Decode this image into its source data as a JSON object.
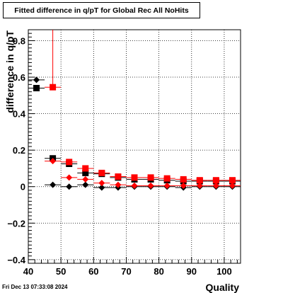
{
  "chart_data": {
    "type": "scatter",
    "title": "Fitted difference in q/pT for Global Rec All NoHits",
    "xlabel": "Quality",
    "ylabel": "difference in q/pT",
    "xlim": [
      40,
      105
    ],
    "ylim": [
      -0.42,
      0.86
    ],
    "grid": true,
    "x_ticks": [
      40,
      50,
      60,
      70,
      80,
      90,
      100
    ],
    "y_ticks": [
      -0.4,
      -0.2,
      0,
      0.2,
      0.4,
      0.6,
      0.8
    ],
    "x_tick_labels": [
      "40",
      "50",
      "60",
      "70",
      "80",
      "90",
      "100"
    ],
    "y_tick_labels": [
      "−0.4",
      "−0.2",
      "0",
      "0.2",
      "0.4",
      "0.6",
      "0.8"
    ],
    "series": [
      {
        "marker": "square",
        "color": "#000000",
        "x": [
          42.5,
          47.5,
          52.5,
          57.5,
          62.5,
          67.5,
          72.5,
          77.5,
          82.5,
          87.5,
          92.5,
          97.5,
          102.5
        ],
        "y": [
          0.54,
          0.155,
          0.125,
          0.075,
          0.07,
          0.05,
          0.04,
          0.04,
          0.035,
          0.03,
          0.03,
          0.03,
          0.03
        ]
      },
      {
        "marker": "square",
        "color": "#ff0000",
        "x": [
          47.5,
          52.5,
          57.5,
          62.5,
          67.5,
          72.5,
          77.5,
          82.5,
          87.5,
          92.5,
          97.5,
          102.5
        ],
        "y": [
          0.545,
          0.135,
          0.1,
          0.075,
          0.055,
          0.05,
          0.05,
          0.045,
          0.04,
          0.035,
          0.035,
          0.035
        ],
        "yerr": [
          [
            0.545,
            0.86
          ]
        ]
      },
      {
        "marker": "diamond",
        "color": "#000000",
        "x": [
          42.5,
          47.5,
          52.5,
          57.5,
          62.5,
          67.5,
          72.5,
          77.5,
          82.5,
          87.5,
          92.5,
          97.5,
          102.5
        ],
        "y": [
          0.585,
          0.01,
          0.0,
          0.01,
          -0.005,
          -0.005,
          0.0,
          0.0,
          0.0,
          -0.005,
          0.0,
          0.0,
          0.0
        ]
      },
      {
        "marker": "diamond",
        "color": "#ff0000",
        "x": [
          47.5,
          52.5,
          57.5,
          62.5,
          67.5,
          72.5,
          77.5,
          82.5,
          87.5,
          92.5,
          97.5,
          102.5
        ],
        "y": [
          0.14,
          0.05,
          0.04,
          0.02,
          0.01,
          0.005,
          0.005,
          0.005,
          0.005,
          0.005,
          0.005,
          0.005
        ]
      }
    ]
  },
  "footer": {
    "timestamp": "Fri Dec 13 07:33:08 2024"
  }
}
